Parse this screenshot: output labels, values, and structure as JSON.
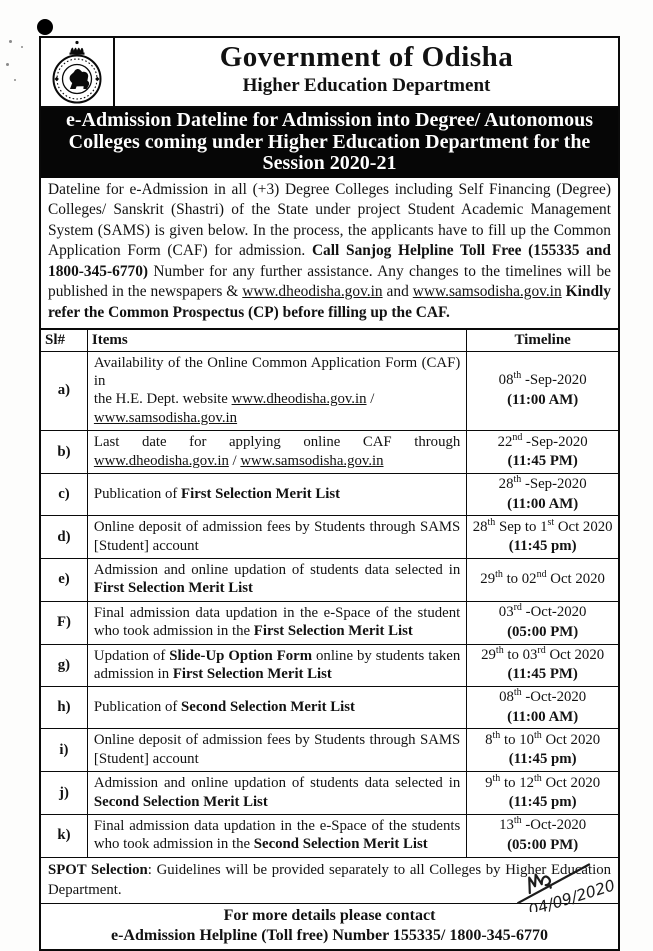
{
  "header": {
    "emblem_icon": "odisha-government-seal",
    "title": "Government of Odisha",
    "subtitle": "Higher Education Department"
  },
  "banner": {
    "bg": "#000000",
    "fg": "#ffffff",
    "lines": [
      "e-Admission Dateline for Admission into Degree/ Autonomous",
      "Colleges coming under Higher Education Department for the",
      "Session 2020-21"
    ]
  },
  "intro": {
    "segments": [
      {
        "t": "Dateline for e-Admission in all (+3) Degree Colleges including Self Financing (Degree) Colleges/ Sanskrit (Shastri) of the State under project Student Academic Management System (SAMS) is given below. In the process, the applicants have to fill up the Common Application Form (CAF) for admission. "
      },
      {
        "t": "Call Sanjog Helpline Toll Free (155335 and 1800-345-6770)",
        "b": true
      },
      {
        "t": " Number for any further assistance. Any changes to the timelines will be published in the newspapers & "
      },
      {
        "t": "www.dheodisha.gov.in",
        "u": true
      },
      {
        "t": " and "
      },
      {
        "t": "www.samsodisha.gov.in",
        "u": true
      },
      {
        "t": " "
      },
      {
        "t": "Kindly refer the Common Prospectus (CP) before filling up the CAF.",
        "b": true
      }
    ]
  },
  "table": {
    "headers": [
      "Sl#",
      "Items",
      "Timeline"
    ],
    "rows": [
      {
        "sl": "a)",
        "item": [
          {
            "t": "Availability of the Online Common Application Form (CAF) in"
          },
          {
            "br": true
          },
          {
            "t": "the H.E. Dept. website "
          },
          {
            "t": "www.dheodisha.gov.in",
            "u": true
          },
          {
            "t": " /"
          },
          {
            "br": true
          },
          {
            "t": "www.samsodisha.gov.in",
            "u": true
          }
        ],
        "timeline": [
          {
            "t": "08"
          },
          {
            "t": "th",
            "sup": true
          },
          {
            "t": " -Sep-2020"
          },
          {
            "br": true
          },
          {
            "t": "(11:00 AM)",
            "b": true
          }
        ]
      },
      {
        "sl": "b)",
        "item": [
          {
            "t": "Last date for applying online CAF through "
          },
          {
            "t": "www.dheodisha.gov.in",
            "u": true
          },
          {
            "t": " / "
          },
          {
            "t": "www.samsodisha.gov.in",
            "u": true
          }
        ],
        "timeline": [
          {
            "t": "22"
          },
          {
            "t": "nd",
            "sup": true
          },
          {
            "t": " -Sep-2020"
          },
          {
            "br": true
          },
          {
            "t": "(11:45 PM)",
            "b": true
          }
        ]
      },
      {
        "sl": "c)",
        "item": [
          {
            "t": "Publication of "
          },
          {
            "t": "First Selection Merit List",
            "b": true
          }
        ],
        "timeline": [
          {
            "t": "28"
          },
          {
            "t": "th",
            "sup": true
          },
          {
            "t": " -Sep-2020"
          },
          {
            "br": true
          },
          {
            "t": "(11:00 AM)",
            "b": true
          }
        ]
      },
      {
        "sl": "d)",
        "item": [
          {
            "t": "Online deposit of admission fees by Students through SAMS [Student] account"
          }
        ],
        "timeline": [
          {
            "t": "28"
          },
          {
            "t": "th",
            "sup": true
          },
          {
            "t": " Sep to 1"
          },
          {
            "t": "st",
            "sup": true
          },
          {
            "t": " Oct 2020"
          },
          {
            "br": true
          },
          {
            "t": "(11:45 pm)",
            "b": true
          }
        ]
      },
      {
        "sl": "e)",
        "item": [
          {
            "t": "Admission and online updation of students data selected in "
          },
          {
            "t": "First Selection Merit List",
            "b": true
          }
        ],
        "timeline": [
          {
            "t": "29"
          },
          {
            "t": "th",
            "sup": true
          },
          {
            "t": " to 02"
          },
          {
            "t": "nd",
            "sup": true
          },
          {
            "t": " Oct 2020"
          }
        ]
      },
      {
        "sl": "F)",
        "item": [
          {
            "t": "Final admission data updation in the e-Space of the student who took admission in the "
          },
          {
            "t": "First Selection Merit List",
            "b": true
          }
        ],
        "timeline": [
          {
            "t": "03"
          },
          {
            "t": "rd",
            "sup": true
          },
          {
            "t": " -Oct-2020"
          },
          {
            "br": true
          },
          {
            "t": "(05:00 PM)",
            "b": true
          }
        ]
      },
      {
        "sl": "g)",
        "item": [
          {
            "t": "Updation of "
          },
          {
            "t": "Slide-Up Option Form",
            "b": true
          },
          {
            "t": " online by students taken admission in "
          },
          {
            "t": "First Selection Merit List",
            "b": true
          }
        ],
        "timeline": [
          {
            "t": "29"
          },
          {
            "t": "th",
            "sup": true
          },
          {
            "t": " to 03"
          },
          {
            "t": "rd",
            "sup": true
          },
          {
            "t": " Oct 2020"
          },
          {
            "br": true
          },
          {
            "t": "(11:45 PM)",
            "b": true
          }
        ]
      },
      {
        "sl": "h)",
        "item": [
          {
            "t": "Publication of "
          },
          {
            "t": "Second Selection Merit List",
            "b": true
          }
        ],
        "timeline": [
          {
            "t": "08"
          },
          {
            "t": "th",
            "sup": true
          },
          {
            "t": " -Oct-2020"
          },
          {
            "br": true
          },
          {
            "t": "(11:00 AM)",
            "b": true
          }
        ]
      },
      {
        "sl": "i)",
        "item": [
          {
            "t": "Online deposit of admission fees by Students through SAMS [Student] account"
          }
        ],
        "timeline": [
          {
            "t": "8"
          },
          {
            "t": "th",
            "sup": true
          },
          {
            "t": " to 10"
          },
          {
            "t": "th",
            "sup": true
          },
          {
            "t": " Oct 2020"
          },
          {
            "br": true
          },
          {
            "t": "(11:45 pm)",
            "b": true
          }
        ]
      },
      {
        "sl": "j)",
        "item": [
          {
            "t": "Admission and online updation of students data selected in "
          },
          {
            "t": "Second Selection Merit List",
            "b": true
          }
        ],
        "timeline": [
          {
            "t": "9"
          },
          {
            "t": "th",
            "sup": true
          },
          {
            "t": " to 12"
          },
          {
            "t": "th",
            "sup": true
          },
          {
            "t": " Oct 2020"
          },
          {
            "br": true
          },
          {
            "t": "(11:45 pm)",
            "b": true
          }
        ]
      },
      {
        "sl": "k)",
        "item": [
          {
            "t": "Final admission data updation in the e-Space of the students who took admission in the "
          },
          {
            "t": "Second Selection Merit List",
            "b": true
          }
        ],
        "timeline": [
          {
            "t": "13"
          },
          {
            "t": "th",
            "sup": true
          },
          {
            "t": " -Oct-2020"
          },
          {
            "br": true
          },
          {
            "t": "(05:00 PM)",
            "b": true
          }
        ]
      }
    ],
    "spot_note": [
      {
        "t": "SPOT Selection",
        "b": true
      },
      {
        "t": ": Guidelines will be provided separately to all Colleges by Higher Education Department."
      }
    ]
  },
  "footer": {
    "line1": "For more details please contact",
    "line2": "e-Admission Helpline (Toll free) Number 155335/ 1800-345-6770"
  },
  "signature": {
    "date": "04/09/2020"
  }
}
